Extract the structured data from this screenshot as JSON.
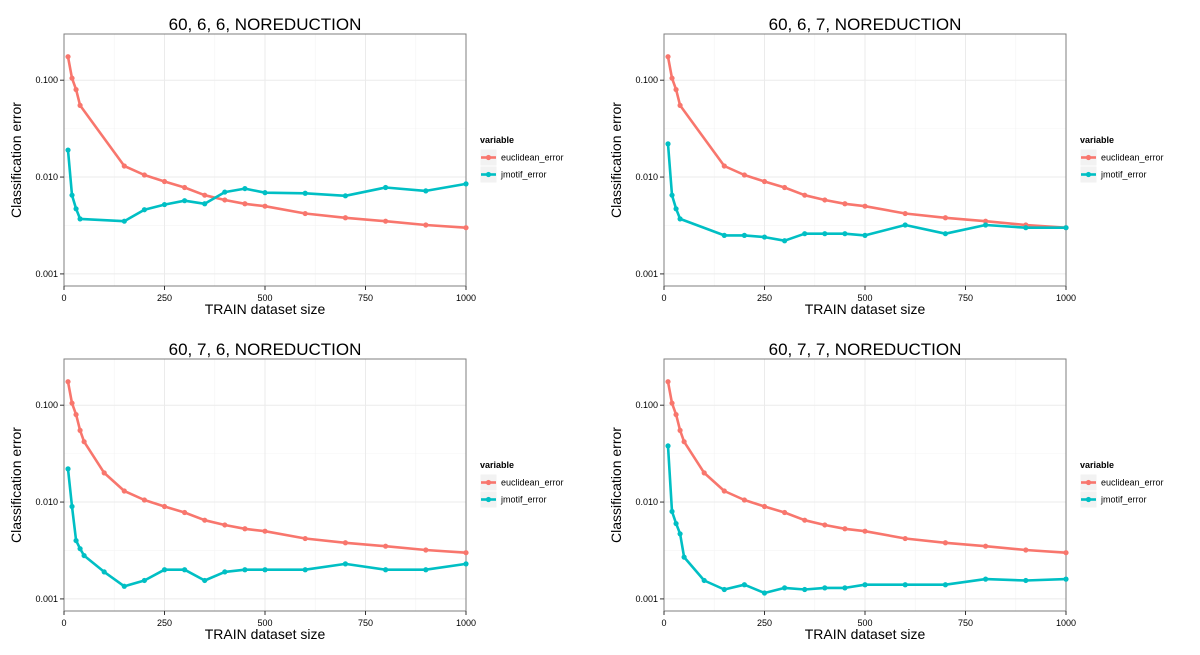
{
  "chart_data": [
    {
      "type": "line",
      "title": "60, 6, 6, NOREDUCTION",
      "xlabel": "TRAIN dataset size",
      "ylabel": "Classification error",
      "y_scale": "log10",
      "xlim": [
        0,
        1000
      ],
      "ylim": [
        0.00075,
        0.3
      ],
      "x_ticks": [
        0,
        250,
        500,
        750,
        1000
      ],
      "y_ticks": [
        0.001,
        0.01,
        0.1
      ],
      "x_tick_labels": [
        "0",
        "250",
        "500",
        "750",
        "1000"
      ],
      "y_tick_labels": [
        "0.001",
        "0.010",
        "0.100"
      ],
      "grid": true,
      "legend": {
        "title": "variable",
        "position": "right"
      },
      "series": [
        {
          "name": "euclidean_error",
          "color": "#F8766D",
          "x": [
            10,
            20,
            30,
            40,
            150,
            200,
            250,
            300,
            350,
            400,
            450,
            500,
            600,
            700,
            800,
            900,
            1000
          ],
          "y": [
            0.175,
            0.105,
            0.08,
            0.055,
            0.013,
            0.0105,
            0.009,
            0.0078,
            0.0065,
            0.0058,
            0.0053,
            0.005,
            0.0042,
            0.0038,
            0.0035,
            0.0032,
            0.003
          ]
        },
        {
          "name": "jmotif_error",
          "color": "#00BFC4",
          "x": [
            10,
            20,
            30,
            40,
            150,
            200,
            250,
            300,
            350,
            400,
            450,
            500,
            600,
            700,
            800,
            900,
            1000
          ],
          "y": [
            0.019,
            0.0065,
            0.0047,
            0.0037,
            0.0035,
            0.0046,
            0.0052,
            0.0057,
            0.0053,
            0.007,
            0.0076,
            0.0069,
            0.0068,
            0.0064,
            0.0078,
            0.0072,
            0.0085
          ]
        }
      ]
    },
    {
      "type": "line",
      "title": "60, 6, 7, NOREDUCTION",
      "xlabel": "TRAIN dataset size",
      "ylabel": "Classification error",
      "y_scale": "log10",
      "xlim": [
        0,
        1000
      ],
      "ylim": [
        0.00075,
        0.3
      ],
      "x_ticks": [
        0,
        250,
        500,
        750,
        1000
      ],
      "y_ticks": [
        0.001,
        0.01,
        0.1
      ],
      "x_tick_labels": [
        "0",
        "250",
        "500",
        "750",
        "1000"
      ],
      "y_tick_labels": [
        "0.001",
        "0.010",
        "0.100"
      ],
      "grid": true,
      "legend": {
        "title": "variable",
        "position": "right"
      },
      "series": [
        {
          "name": "euclidean_error",
          "color": "#F8766D",
          "x": [
            10,
            20,
            30,
            40,
            150,
            200,
            250,
            300,
            350,
            400,
            450,
            500,
            600,
            700,
            800,
            900,
            1000
          ],
          "y": [
            0.175,
            0.105,
            0.08,
            0.055,
            0.013,
            0.0105,
            0.009,
            0.0078,
            0.0065,
            0.0058,
            0.0053,
            0.005,
            0.0042,
            0.0038,
            0.0035,
            0.0032,
            0.003
          ]
        },
        {
          "name": "jmotif_error",
          "color": "#00BFC4",
          "x": [
            10,
            20,
            30,
            40,
            150,
            200,
            250,
            300,
            350,
            400,
            450,
            500,
            600,
            700,
            800,
            900,
            1000
          ],
          "y": [
            0.022,
            0.0065,
            0.0047,
            0.0037,
            0.0025,
            0.0025,
            0.0024,
            0.0022,
            0.0026,
            0.0026,
            0.0026,
            0.0025,
            0.0032,
            0.0026,
            0.0032,
            0.003,
            0.003
          ]
        }
      ]
    },
    {
      "type": "line",
      "title": "60, 7, 6, NOREDUCTION",
      "xlabel": "TRAIN dataset size",
      "ylabel": "Classification error",
      "y_scale": "log10",
      "xlim": [
        0,
        1000
      ],
      "ylim": [
        0.00075,
        0.3
      ],
      "x_ticks": [
        0,
        250,
        500,
        750,
        1000
      ],
      "y_ticks": [
        0.001,
        0.01,
        0.1
      ],
      "x_tick_labels": [
        "0",
        "250",
        "500",
        "750",
        "1000"
      ],
      "y_tick_labels": [
        "0.001",
        "0.010",
        "0.100"
      ],
      "grid": true,
      "legend": {
        "title": "variable",
        "position": "right"
      },
      "series": [
        {
          "name": "euclidean_error",
          "color": "#F8766D",
          "x": [
            10,
            20,
            30,
            40,
            50,
            100,
            150,
            200,
            250,
            300,
            350,
            400,
            450,
            500,
            600,
            700,
            800,
            900,
            1000
          ],
          "y": [
            0.175,
            0.105,
            0.08,
            0.055,
            0.042,
            0.02,
            0.013,
            0.0105,
            0.009,
            0.0078,
            0.0065,
            0.0058,
            0.0053,
            0.005,
            0.0042,
            0.0038,
            0.0035,
            0.0032,
            0.003
          ]
        },
        {
          "name": "jmotif_error",
          "color": "#00BFC4",
          "x": [
            10,
            20,
            30,
            40,
            50,
            100,
            150,
            200,
            250,
            300,
            350,
            400,
            450,
            500,
            600,
            700,
            800,
            900,
            1000
          ],
          "y": [
            0.022,
            0.009,
            0.004,
            0.0033,
            0.0028,
            0.0019,
            0.00135,
            0.00155,
            0.002,
            0.002,
            0.00155,
            0.0019,
            0.002,
            0.002,
            0.002,
            0.0023,
            0.002,
            0.002,
            0.0023
          ]
        }
      ]
    },
    {
      "type": "line",
      "title": "60, 7, 7, NOREDUCTION",
      "xlabel": "TRAIN dataset size",
      "ylabel": "Classification error",
      "y_scale": "log10",
      "xlim": [
        0,
        1000
      ],
      "ylim": [
        0.00075,
        0.3
      ],
      "x_ticks": [
        0,
        250,
        500,
        750,
        1000
      ],
      "y_ticks": [
        0.001,
        0.01,
        0.1
      ],
      "x_tick_labels": [
        "0",
        "250",
        "500",
        "750",
        "1000"
      ],
      "y_tick_labels": [
        "0.001",
        "0.010",
        "0.100"
      ],
      "grid": true,
      "legend": {
        "title": "variable",
        "position": "right"
      },
      "series": [
        {
          "name": "euclidean_error",
          "color": "#F8766D",
          "x": [
            10,
            20,
            30,
            40,
            50,
            100,
            150,
            200,
            250,
            300,
            350,
            400,
            450,
            500,
            600,
            700,
            800,
            900,
            1000
          ],
          "y": [
            0.175,
            0.105,
            0.08,
            0.055,
            0.042,
            0.02,
            0.013,
            0.0105,
            0.009,
            0.0078,
            0.0065,
            0.0058,
            0.0053,
            0.005,
            0.0042,
            0.0038,
            0.0035,
            0.0032,
            0.003
          ]
        },
        {
          "name": "jmotif_error",
          "color": "#00BFC4",
          "x": [
            10,
            20,
            30,
            40,
            50,
            100,
            150,
            200,
            250,
            300,
            350,
            400,
            450,
            500,
            600,
            700,
            800,
            900,
            1000
          ],
          "y": [
            0.038,
            0.008,
            0.006,
            0.0047,
            0.0027,
            0.00155,
            0.00125,
            0.0014,
            0.00115,
            0.0013,
            0.00125,
            0.0013,
            0.0013,
            0.0014,
            0.0014,
            0.0014,
            0.0016,
            0.00155,
            0.0016
          ]
        }
      ]
    }
  ]
}
